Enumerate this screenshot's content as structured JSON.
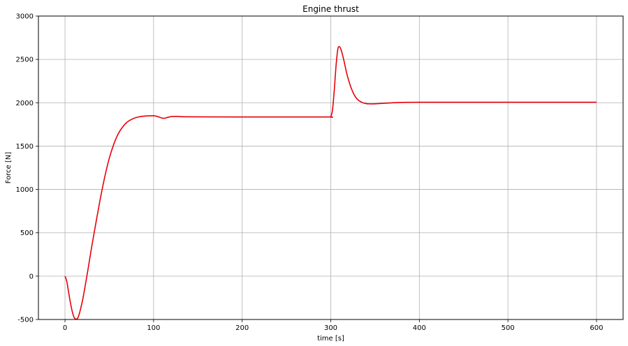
{
  "chart_data": {
    "type": "line",
    "title": "Engine thrust",
    "xlabel": "time [s]",
    "ylabel": "Force [N]",
    "xlim": [
      -30,
      630
    ],
    "ylim": [
      -500,
      3000
    ],
    "xticks": [
      0,
      100,
      200,
      300,
      400,
      500,
      600
    ],
    "yticks": [
      -500,
      0,
      500,
      1000,
      1500,
      2000,
      2500,
      3000
    ],
    "grid": true,
    "series": [
      {
        "color": "#e8000b",
        "x": [
          0,
          2,
          4,
          6,
          8,
          10,
          12,
          14,
          16,
          18,
          20,
          23,
          26,
          30,
          35,
          40,
          45,
          50,
          55,
          60,
          65,
          70,
          75,
          80,
          85,
          90,
          95,
          100,
          103,
          106,
          110,
          113,
          116,
          120,
          125,
          130,
          140,
          160,
          200,
          250,
          298,
          300,
          302,
          304,
          306,
          308,
          310,
          312,
          315,
          318,
          322,
          326,
          330,
          335,
          340,
          345,
          350,
          360,
          370,
          380,
          390,
          400,
          450,
          500,
          550,
          600
        ],
        "y": [
          0,
          -60,
          -180,
          -300,
          -400,
          -470,
          -495,
          -490,
          -440,
          -360,
          -270,
          -100,
          80,
          330,
          620,
          900,
          1150,
          1360,
          1520,
          1640,
          1720,
          1775,
          1808,
          1828,
          1840,
          1846,
          1849,
          1850,
          1845,
          1835,
          1822,
          1822,
          1832,
          1840,
          1843,
          1840,
          1838,
          1837,
          1836,
          1836,
          1836,
          1840,
          1920,
          2150,
          2430,
          2620,
          2645,
          2600,
          2480,
          2340,
          2200,
          2100,
          2040,
          2005,
          1990,
          1987,
          1988,
          1994,
          2000,
          2004,
          2005,
          2006,
          2006,
          2006,
          2006,
          2006
        ]
      }
    ]
  }
}
